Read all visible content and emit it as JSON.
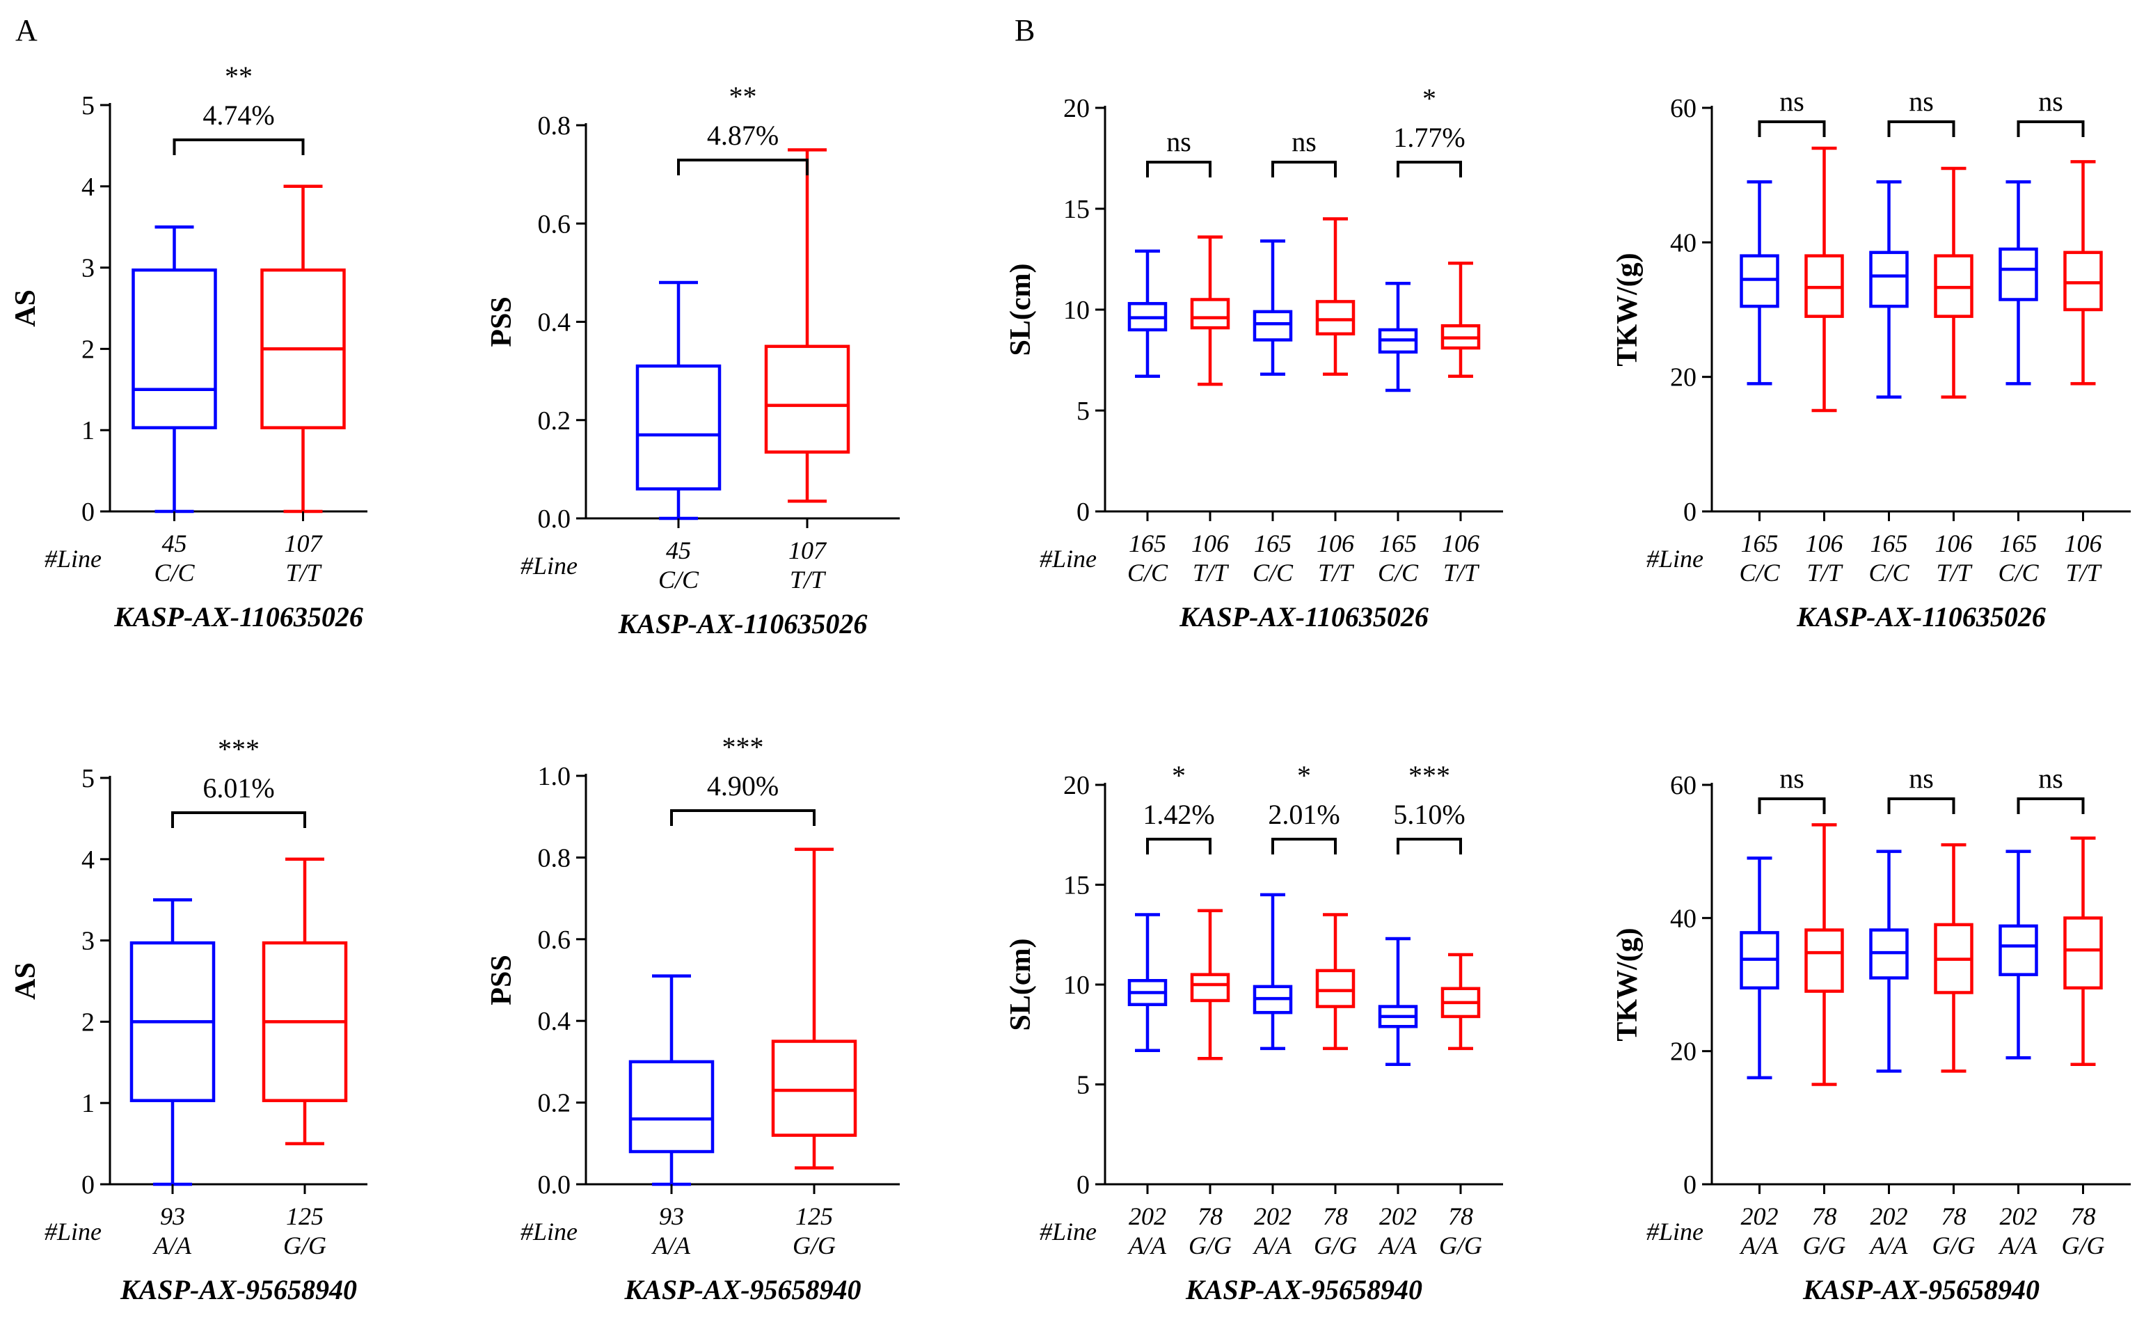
{
  "figure": {
    "panel_labels": [
      "A",
      "B"
    ],
    "line_count_label": "#Line",
    "colors": {
      "genotype_1": "#0000ff",
      "genotype_2": "#ff0000",
      "axis": "#000000"
    }
  },
  "chart_data": [
    {
      "id": "AS-top",
      "type": "box",
      "panel": "A",
      "ylabel": "AS",
      "ylim": [
        0,
        5
      ],
      "yticks": [
        0,
        1,
        2,
        3,
        4,
        5
      ],
      "marker": "KASP-AX-110635026",
      "groups": [
        {
          "count": "45",
          "genotype": "C/C",
          "color": "#0000ff",
          "min": 0,
          "q1": 1.03,
          "median": 1.5,
          "q3": 2.97,
          "max": 3.5
        },
        {
          "count": "107",
          "genotype": "T/T",
          "color": "#ff0000",
          "min": 0,
          "q1": 1.03,
          "median": 2.0,
          "q3": 2.97,
          "max": 4.0
        }
      ],
      "comparisons": [
        {
          "pair": [
            0,
            1
          ],
          "stars": "**",
          "pct": "4.74%"
        }
      ]
    },
    {
      "id": "PSS-top",
      "type": "box",
      "panel": "A",
      "ylabel": "PSS",
      "ylim": [
        0,
        0.8
      ],
      "yticks": [
        "0.0",
        "0.2",
        "0.4",
        "0.6",
        "0.8"
      ],
      "marker": "KASP-AX-110635026",
      "groups": [
        {
          "count": "45",
          "genotype": "C/C",
          "color": "#0000ff",
          "min": 0,
          "q1": 0.06,
          "median": 0.17,
          "q3": 0.31,
          "max": 0.48
        },
        {
          "count": "107",
          "genotype": "T/T",
          "color": "#ff0000",
          "min": 0.035,
          "q1": 0.135,
          "median": 0.23,
          "q3": 0.35,
          "max": 0.75
        }
      ],
      "comparisons": [
        {
          "pair": [
            0,
            1
          ],
          "stars": "**",
          "pct": "4.87%"
        }
      ]
    },
    {
      "id": "SL-top",
      "type": "box",
      "panel": "B",
      "ylabel": "SL(cm)",
      "ylim": [
        0,
        20
      ],
      "yticks": [
        0,
        5,
        10,
        15,
        20
      ],
      "marker": "KASP-AX-110635026",
      "groups": [
        {
          "count": "165",
          "genotype": "C/C",
          "color": "#0000ff",
          "min": 6.7,
          "q1": 9.0,
          "median": 9.6,
          "q3": 10.3,
          "max": 12.9
        },
        {
          "count": "106",
          "genotype": "T/T",
          "color": "#ff0000",
          "min": 6.3,
          "q1": 9.1,
          "median": 9.6,
          "q3": 10.5,
          "max": 13.6
        },
        {
          "count": "165",
          "genotype": "C/C",
          "color": "#0000ff",
          "min": 6.8,
          "q1": 8.5,
          "median": 9.3,
          "q3": 9.9,
          "max": 13.4
        },
        {
          "count": "106",
          "genotype": "T/T",
          "color": "#ff0000",
          "min": 6.8,
          "q1": 8.8,
          "median": 9.5,
          "q3": 10.4,
          "max": 14.5
        },
        {
          "count": "165",
          "genotype": "C/C",
          "color": "#0000ff",
          "min": 6.0,
          "q1": 7.9,
          "median": 8.5,
          "q3": 9.0,
          "max": 11.3
        },
        {
          "count": "106",
          "genotype": "T/T",
          "color": "#ff0000",
          "min": 6.7,
          "q1": 8.1,
          "median": 8.6,
          "q3": 9.2,
          "max": 12.3
        }
      ],
      "comparisons": [
        {
          "pair": [
            0,
            1
          ],
          "stars": "ns",
          "pct": ""
        },
        {
          "pair": [
            2,
            3
          ],
          "stars": "ns",
          "pct": ""
        },
        {
          "pair": [
            4,
            5
          ],
          "stars": "*",
          "pct": "1.77%"
        }
      ]
    },
    {
      "id": "TKW-top",
      "type": "box",
      "panel": "B",
      "ylabel": "TKW/(g)",
      "ylim": [
        0,
        60
      ],
      "yticks": [
        0,
        20,
        40,
        60
      ],
      "marker": "KASP-AX-110635026",
      "groups": [
        {
          "count": "165",
          "genotype": "C/C",
          "color": "#0000ff",
          "min": 19,
          "q1": 30.5,
          "median": 34.5,
          "q3": 38,
          "max": 49
        },
        {
          "count": "106",
          "genotype": "T/T",
          "color": "#ff0000",
          "min": 15,
          "q1": 29,
          "median": 33.3,
          "q3": 38,
          "max": 54
        },
        {
          "count": "165",
          "genotype": "C/C",
          "color": "#0000ff",
          "min": 17,
          "q1": 30.5,
          "median": 35,
          "q3": 38.5,
          "max": 49
        },
        {
          "count": "106",
          "genotype": "T/T",
          "color": "#ff0000",
          "min": 17,
          "q1": 29,
          "median": 33.3,
          "q3": 38,
          "max": 51
        },
        {
          "count": "165",
          "genotype": "C/C",
          "color": "#0000ff",
          "min": 19,
          "q1": 31.5,
          "median": 36,
          "q3": 39,
          "max": 49
        },
        {
          "count": "106",
          "genotype": "T/T",
          "color": "#ff0000",
          "min": 19,
          "q1": 30,
          "median": 34,
          "q3": 38.5,
          "max": 52
        }
      ],
      "comparisons": [
        {
          "pair": [
            0,
            1
          ],
          "stars": "ns",
          "pct": ""
        },
        {
          "pair": [
            2,
            3
          ],
          "stars": "ns",
          "pct": ""
        },
        {
          "pair": [
            4,
            5
          ],
          "stars": "ns",
          "pct": ""
        }
      ]
    },
    {
      "id": "AS-bottom",
      "type": "box",
      "panel": "A",
      "ylabel": "AS",
      "ylim": [
        0,
        5
      ],
      "yticks": [
        0,
        1,
        2,
        3,
        4,
        5
      ],
      "marker": "KASP-AX-95658940",
      "groups": [
        {
          "count": "93",
          "genotype": "A/A",
          "color": "#0000ff",
          "min": 0,
          "q1": 1.03,
          "median": 2.0,
          "q3": 2.97,
          "max": 3.5
        },
        {
          "count": "125",
          "genotype": "G/G",
          "color": "#ff0000",
          "min": 0.5,
          "q1": 1.03,
          "median": 2.0,
          "q3": 2.97,
          "max": 4.0
        }
      ],
      "comparisons": [
        {
          "pair": [
            0,
            1
          ],
          "stars": "***",
          "pct": "6.01%"
        }
      ]
    },
    {
      "id": "PSS-bottom",
      "type": "box",
      "panel": "A",
      "ylabel": "PSS",
      "ylim": [
        0,
        1.0
      ],
      "yticks": [
        "0.0",
        "0.2",
        "0.4",
        "0.6",
        "0.8",
        "1.0"
      ],
      "marker": "KASP-AX-95658940",
      "groups": [
        {
          "count": "93",
          "genotype": "A/A",
          "color": "#0000ff",
          "min": 0,
          "q1": 0.08,
          "median": 0.16,
          "q3": 0.3,
          "max": 0.51
        },
        {
          "count": "125",
          "genotype": "G/G",
          "color": "#ff0000",
          "min": 0.04,
          "q1": 0.12,
          "median": 0.23,
          "q3": 0.35,
          "max": 0.82
        }
      ],
      "comparisons": [
        {
          "pair": [
            0,
            1
          ],
          "stars": "***",
          "pct": "4.90%"
        }
      ]
    },
    {
      "id": "SL-bottom",
      "type": "box",
      "panel": "B",
      "ylabel": "SL(cm)",
      "ylim": [
        0,
        20
      ],
      "yticks": [
        0,
        5,
        10,
        15,
        20
      ],
      "marker": "KASP-AX-95658940",
      "groups": [
        {
          "count": "202",
          "genotype": "A/A",
          "color": "#0000ff",
          "min": 6.7,
          "q1": 9.0,
          "median": 9.6,
          "q3": 10.2,
          "max": 13.5
        },
        {
          "count": "78",
          "genotype": "G/G",
          "color": "#ff0000",
          "min": 6.3,
          "q1": 9.2,
          "median": 10.0,
          "q3": 10.5,
          "max": 13.7
        },
        {
          "count": "202",
          "genotype": "A/A",
          "color": "#0000ff",
          "min": 6.8,
          "q1": 8.6,
          "median": 9.3,
          "q3": 9.9,
          "max": 14.5
        },
        {
          "count": "78",
          "genotype": "G/G",
          "color": "#ff0000",
          "min": 6.8,
          "q1": 8.9,
          "median": 9.7,
          "q3": 10.7,
          "max": 13.5
        },
        {
          "count": "202",
          "genotype": "A/A",
          "color": "#0000ff",
          "min": 6.0,
          "q1": 7.9,
          "median": 8.4,
          "q3": 8.9,
          "max": 12.3
        },
        {
          "count": "78",
          "genotype": "G/G",
          "color": "#ff0000",
          "min": 6.8,
          "q1": 8.4,
          "median": 9.1,
          "q3": 9.8,
          "max": 11.5
        }
      ],
      "comparisons": [
        {
          "pair": [
            0,
            1
          ],
          "stars": "*",
          "pct": "1.42%"
        },
        {
          "pair": [
            2,
            3
          ],
          "stars": "*",
          "pct": "2.01%"
        },
        {
          "pair": [
            4,
            5
          ],
          "stars": "***",
          "pct": "5.10%"
        }
      ]
    },
    {
      "id": "TKW-bottom",
      "type": "box",
      "panel": "B",
      "ylabel": "TKW/(g)",
      "ylim": [
        0,
        60
      ],
      "yticks": [
        0,
        20,
        40,
        60
      ],
      "marker": "KASP-AX-95658940",
      "groups": [
        {
          "count": "202",
          "genotype": "A/A",
          "color": "#0000ff",
          "min": 16,
          "q1": 29.5,
          "median": 33.8,
          "q3": 37.8,
          "max": 49
        },
        {
          "count": "78",
          "genotype": "G/G",
          "color": "#ff0000",
          "min": 15,
          "q1": 29,
          "median": 34.8,
          "q3": 38.2,
          "max": 54
        },
        {
          "count": "202",
          "genotype": "A/A",
          "color": "#0000ff",
          "min": 17,
          "q1": 31,
          "median": 34.8,
          "q3": 38.2,
          "max": 50
        },
        {
          "count": "78",
          "genotype": "G/G",
          "color": "#ff0000",
          "min": 17,
          "q1": 28.8,
          "median": 33.8,
          "q3": 39.0,
          "max": 51
        },
        {
          "count": "202",
          "genotype": "A/A",
          "color": "#0000ff",
          "min": 19,
          "q1": 31.5,
          "median": 35.8,
          "q3": 38.8,
          "max": 50
        },
        {
          "count": "78",
          "genotype": "G/G",
          "color": "#ff0000",
          "min": 18,
          "q1": 29.5,
          "median": 35.2,
          "q3": 40.0,
          "max": 52
        }
      ],
      "comparisons": [
        {
          "pair": [
            0,
            1
          ],
          "stars": "ns",
          "pct": ""
        },
        {
          "pair": [
            2,
            3
          ],
          "stars": "ns",
          "pct": ""
        },
        {
          "pair": [
            4,
            5
          ],
          "stars": "ns",
          "pct": ""
        }
      ]
    }
  ]
}
